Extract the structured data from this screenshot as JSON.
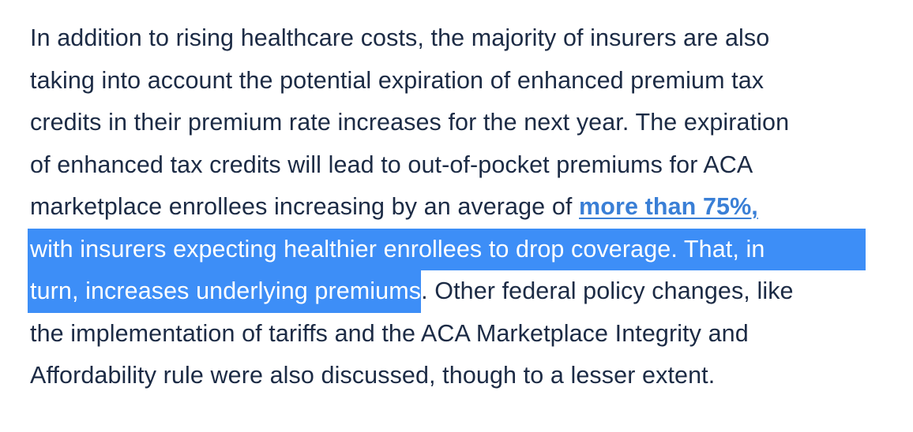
{
  "paragraph": {
    "line1": "In addition to rising healthcare costs, the majority of insurers are also",
    "line2": "taking into account the potential expiration of enhanced premium tax",
    "line3": "credits in their premium rate increases for the next year. The expiration",
    "line4": "of enhanced tax credits will lead to out-of-pocket premiums for ACA",
    "line5_before_link": "marketplace enrollees increasing by an average of ",
    "link_text": "more than 75%,",
    "line6_highlighted": "with insurers expecting healthier enrollees to drop coverage. That, in",
    "line7_highlighted": "turn, increases underlying premiums",
    "line7_after": ". Other federal policy changes, like",
    "line8": "the implementation of tariffs and the ACA Marketplace Integrity and",
    "line9": "Affordability rule were also discussed, though to a lesser extent."
  },
  "colors": {
    "text": "#1c2b45",
    "link": "#3a7fd6",
    "selection": "#3d8ef7"
  }
}
